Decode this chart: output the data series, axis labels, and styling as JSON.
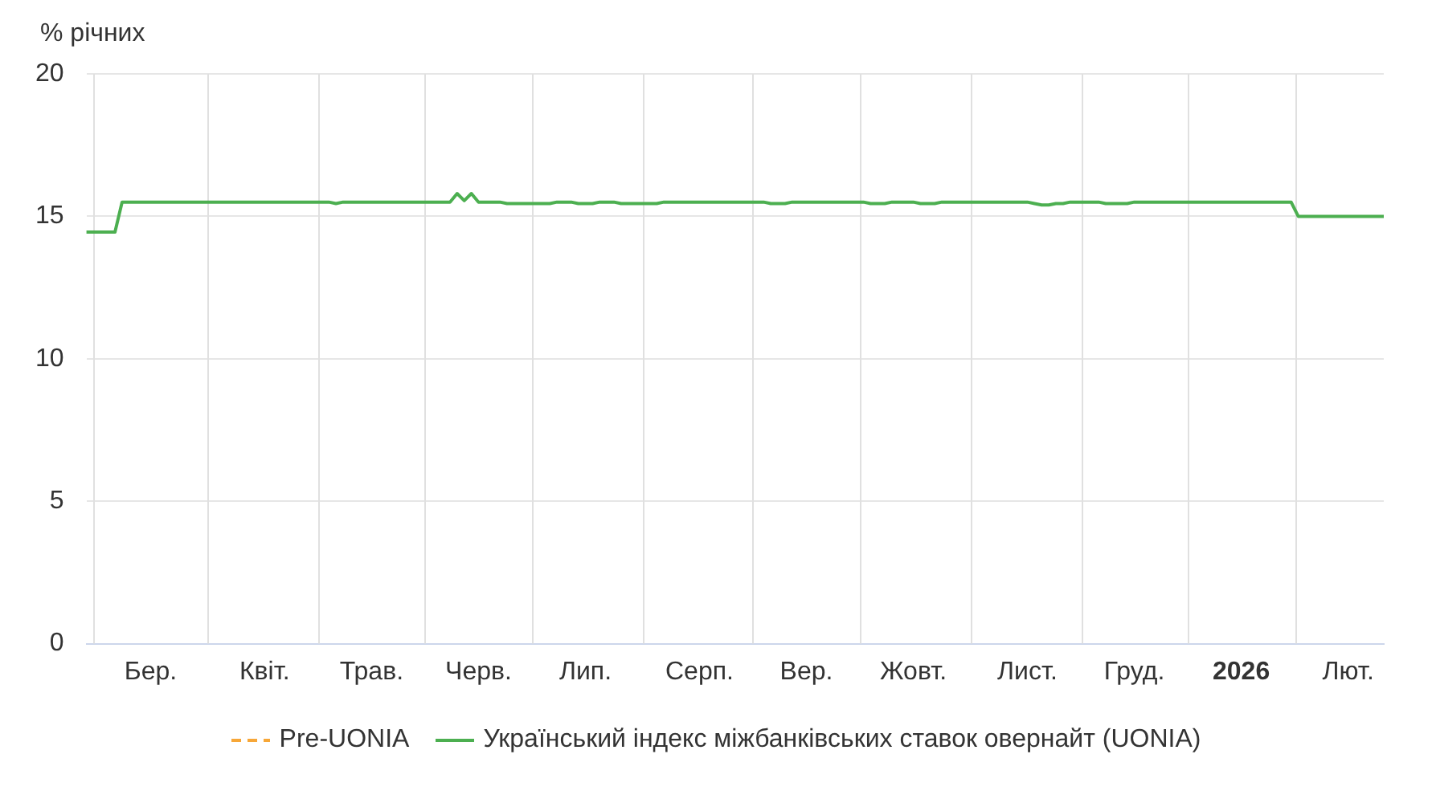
{
  "chart_data": {
    "type": "line",
    "ylabel": "% річних",
    "ylim": [
      0,
      20
    ],
    "yticks": [
      0,
      5,
      10,
      15,
      20
    ],
    "categories": [
      null,
      null,
      null,
      null,
      null,
      null,
      null,
      null,
      null,
      "Бер.",
      null,
      null,
      null,
      null,
      null,
      null,
      null,
      null,
      null,
      null,
      null,
      null,
      null,
      null,
      null,
      "Квіт.",
      null,
      null,
      null,
      null,
      null,
      null,
      null,
      null,
      null,
      null,
      null,
      null,
      null,
      null,
      "Трав.",
      null,
      null,
      null,
      null,
      null,
      null,
      null,
      null,
      null,
      null,
      null,
      null,
      null,
      null,
      "Черв.",
      null,
      null,
      null,
      null,
      null,
      null,
      null,
      null,
      null,
      null,
      null,
      null,
      null,
      null,
      "Лип.",
      null,
      null,
      null,
      null,
      null,
      null,
      null,
      null,
      null,
      null,
      null,
      null,
      null,
      null,
      null,
      "Серп.",
      null,
      null,
      null,
      null,
      null,
      null,
      null,
      null,
      null,
      null,
      null,
      null,
      null,
      null,
      "Вер.",
      null,
      null,
      null,
      null,
      null,
      null,
      null,
      null,
      null,
      null,
      null,
      null,
      null,
      null,
      "Жовт.",
      null,
      null,
      null,
      null,
      null,
      null,
      null,
      null,
      null,
      null,
      null,
      null,
      null,
      null,
      null,
      "Лист.",
      null,
      null,
      null,
      null,
      null,
      null,
      null,
      null,
      null,
      null,
      null,
      null,
      null,
      null,
      "Груд.",
      null,
      null,
      null,
      null,
      null,
      null,
      null,
      null,
      null,
      null,
      null,
      null,
      null,
      null,
      "2026",
      null,
      null,
      null,
      null,
      null,
      null,
      null,
      null,
      null,
      null,
      null,
      null,
      null,
      null,
      "Лют.",
      null,
      null,
      null,
      null,
      null
    ],
    "grid": true,
    "legend": "bottom",
    "marker": "none",
    "series": [
      {
        "name": "Pre-UONIA",
        "color": "#f7a738",
        "line_style": "dashed",
        "values": [
          null,
          null,
          null,
          null,
          null,
          null,
          null,
          null,
          null,
          null,
          null,
          null,
          null,
          null,
          null,
          null,
          null,
          null,
          null,
          null,
          null,
          null,
          null,
          null,
          null,
          null,
          null,
          null,
          null,
          null,
          null,
          null,
          null,
          null,
          null,
          null,
          null,
          null,
          null,
          null,
          null,
          null,
          null,
          null,
          null,
          null,
          null,
          null,
          null,
          null,
          null,
          null,
          null,
          null,
          null,
          null,
          null,
          null,
          null,
          null,
          null,
          null,
          null,
          null,
          null,
          null,
          null,
          null,
          null,
          null,
          null,
          null,
          null,
          null,
          null,
          null,
          null,
          null,
          null,
          null,
          null,
          null,
          null,
          null,
          null,
          null,
          null,
          null,
          null,
          null,
          null,
          null,
          null,
          null,
          null,
          null,
          null,
          null,
          null,
          null,
          null,
          null,
          null,
          null,
          null,
          null,
          null,
          null,
          null,
          null,
          null,
          null,
          null,
          null,
          null,
          null,
          null,
          null,
          null,
          null,
          null,
          null,
          null,
          null,
          null,
          null,
          null,
          null,
          null,
          null,
          null,
          null,
          null,
          null,
          null,
          null,
          null,
          null,
          null,
          null,
          null,
          null,
          null,
          null,
          null,
          null,
          null,
          null,
          null,
          null,
          null,
          null,
          null,
          null,
          null,
          null,
          null,
          null,
          null,
          null,
          null,
          null,
          null,
          null,
          null,
          null,
          null,
          null,
          null,
          null,
          null,
          null,
          null,
          null,
          null,
          null,
          null,
          null,
          null,
          null,
          null,
          null,
          null
        ]
      },
      {
        "name": "Український індекс міжбанківських ставок овернайт (UONIA)",
        "color": "#4caf50",
        "line_style": "solid",
        "values": [
          14.45,
          14.45,
          14.45,
          14.45,
          14.45,
          15.5,
          15.5,
          15.5,
          15.5,
          15.5,
          15.5,
          15.5,
          15.5,
          15.5,
          15.5,
          15.5,
          15.5,
          15.5,
          15.5,
          15.5,
          15.5,
          15.5,
          15.5,
          15.5,
          15.5,
          15.5,
          15.5,
          15.5,
          15.5,
          15.5,
          15.5,
          15.5,
          15.5,
          15.5,
          15.5,
          15.45,
          15.5,
          15.5,
          15.5,
          15.5,
          15.5,
          15.5,
          15.5,
          15.5,
          15.5,
          15.5,
          15.5,
          15.5,
          15.5,
          15.5,
          15.5,
          15.5,
          15.8,
          15.55,
          15.8,
          15.5,
          15.5,
          15.5,
          15.5,
          15.45,
          15.45,
          15.45,
          15.45,
          15.45,
          15.45,
          15.45,
          15.5,
          15.5,
          15.5,
          15.45,
          15.45,
          15.45,
          15.5,
          15.5,
          15.5,
          15.45,
          15.45,
          15.45,
          15.45,
          15.45,
          15.45,
          15.5,
          15.5,
          15.5,
          15.5,
          15.5,
          15.5,
          15.5,
          15.5,
          15.5,
          15.5,
          15.5,
          15.5,
          15.5,
          15.5,
          15.5,
          15.45,
          15.45,
          15.45,
          15.5,
          15.5,
          15.5,
          15.5,
          15.5,
          15.5,
          15.5,
          15.5,
          15.5,
          15.5,
          15.5,
          15.45,
          15.45,
          15.45,
          15.5,
          15.5,
          15.5,
          15.5,
          15.45,
          15.45,
          15.45,
          15.5,
          15.5,
          15.5,
          15.5,
          15.5,
          15.5,
          15.5,
          15.5,
          15.5,
          15.5,
          15.5,
          15.5,
          15.5,
          15.45,
          15.4,
          15.4,
          15.45,
          15.45,
          15.5,
          15.5,
          15.5,
          15.5,
          15.5,
          15.45,
          15.45,
          15.45,
          15.45,
          15.5,
          15.5,
          15.5,
          15.5,
          15.5,
          15.5,
          15.5,
          15.5,
          15.5,
          15.5,
          15.5,
          15.5,
          15.5,
          15.5,
          15.5,
          15.5,
          15.5,
          15.5,
          15.5,
          15.5,
          15.5,
          15.5,
          15.5,
          15.0,
          15.0,
          15.0,
          15.0,
          15.0,
          15.0,
          15.0,
          15.0,
          15.0,
          15.0,
          15.0,
          15.0,
          15.0
        ]
      }
    ]
  }
}
